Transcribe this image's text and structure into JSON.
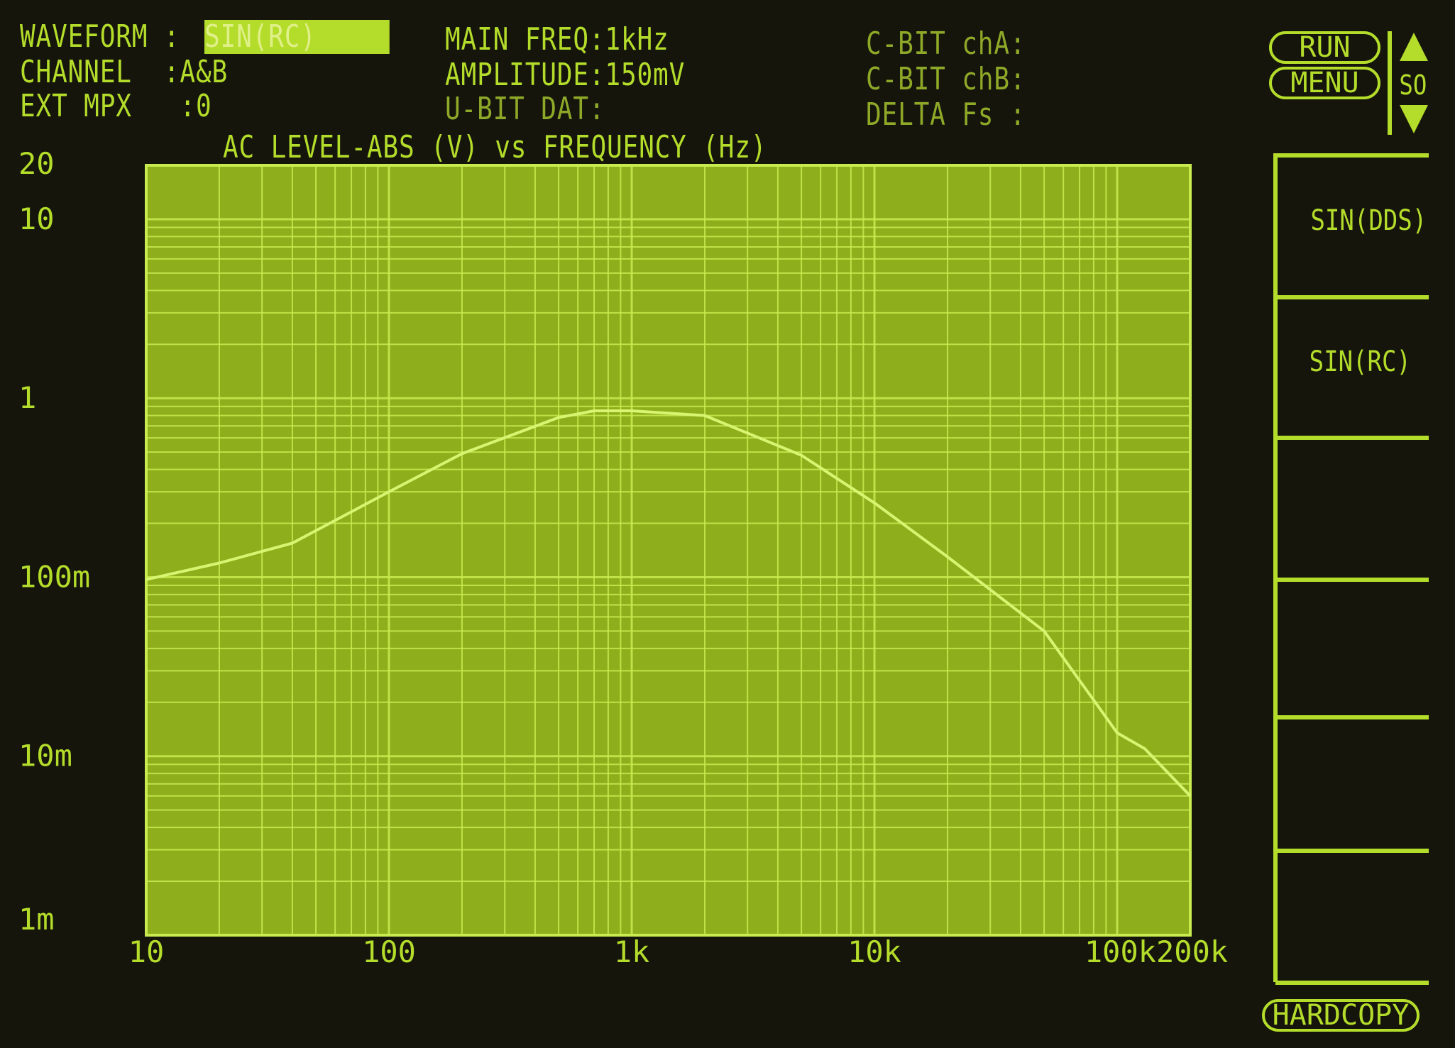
{
  "status": {
    "waveform": {
      "label": "WAVEFORM",
      "value": "SIN(RC)"
    },
    "channel": {
      "label": "CHANNEL",
      "value": "A&B"
    },
    "ext_mpx": {
      "label": "EXT MPX",
      "value": "0"
    },
    "main_freq": {
      "label": "MAIN FREQ",
      "value": "1kHz"
    },
    "amplitude": {
      "label": "AMPLITUDE",
      "value": "150mV"
    },
    "u_bit_dat": {
      "label": "U-BIT DAT",
      "value": ""
    },
    "c_bit_cha": {
      "label": "C-BIT chA",
      "value": ""
    },
    "c_bit_chb": {
      "label": "C-BIT chB",
      "value": ""
    },
    "delta_fs": {
      "label": "DELTA Fs",
      "value": ""
    }
  },
  "softkeys": {
    "run": "RUN",
    "menu": "MENU",
    "scroll": "SO",
    "items": [
      "SIN(DDS)",
      "SIN(RC)",
      "",
      "",
      "",
      ""
    ],
    "hardcopy": "HARDCOPY"
  },
  "colors": {
    "phosphor": "#b4dc2a",
    "plot_bg": "#8fae1c",
    "grid": "#c8ec50",
    "background": "#15150c"
  },
  "chart_data": {
    "type": "line",
    "title": "AC LEVEL-ABS (V) vs FREQUENCY (Hz)",
    "xscale": "log",
    "yscale": "log",
    "xlim": [
      10,
      200000
    ],
    "ylim": [
      0.001,
      20
    ],
    "x_tick_labels": [
      {
        "v": 10,
        "t": "10"
      },
      {
        "v": 100,
        "t": "100"
      },
      {
        "v": 1000,
        "t": "1k"
      },
      {
        "v": 10000,
        "t": "10k"
      },
      {
        "v": 100000,
        "t": "100k"
      },
      {
        "v": 200000,
        "t": "200k"
      }
    ],
    "y_tick_labels": [
      {
        "v": 20,
        "t": "20"
      },
      {
        "v": 10,
        "t": "10"
      },
      {
        "v": 1,
        "t": "1"
      },
      {
        "v": 0.1,
        "t": "100m"
      },
      {
        "v": 0.01,
        "t": "10m"
      },
      {
        "v": 0.001,
        "t": "1m"
      }
    ],
    "grid": true,
    "series": [
      {
        "x": [
          10,
          20,
          40,
          100,
          200,
          500,
          700,
          1000,
          2000,
          5000,
          10000,
          20000,
          50000,
          100000,
          130000,
          200000
        ],
        "y": [
          0.097,
          0.12,
          0.155,
          0.3,
          0.49,
          0.78,
          0.85,
          0.85,
          0.8,
          0.48,
          0.26,
          0.13,
          0.05,
          0.0135,
          0.011,
          0.006
        ]
      }
    ]
  }
}
